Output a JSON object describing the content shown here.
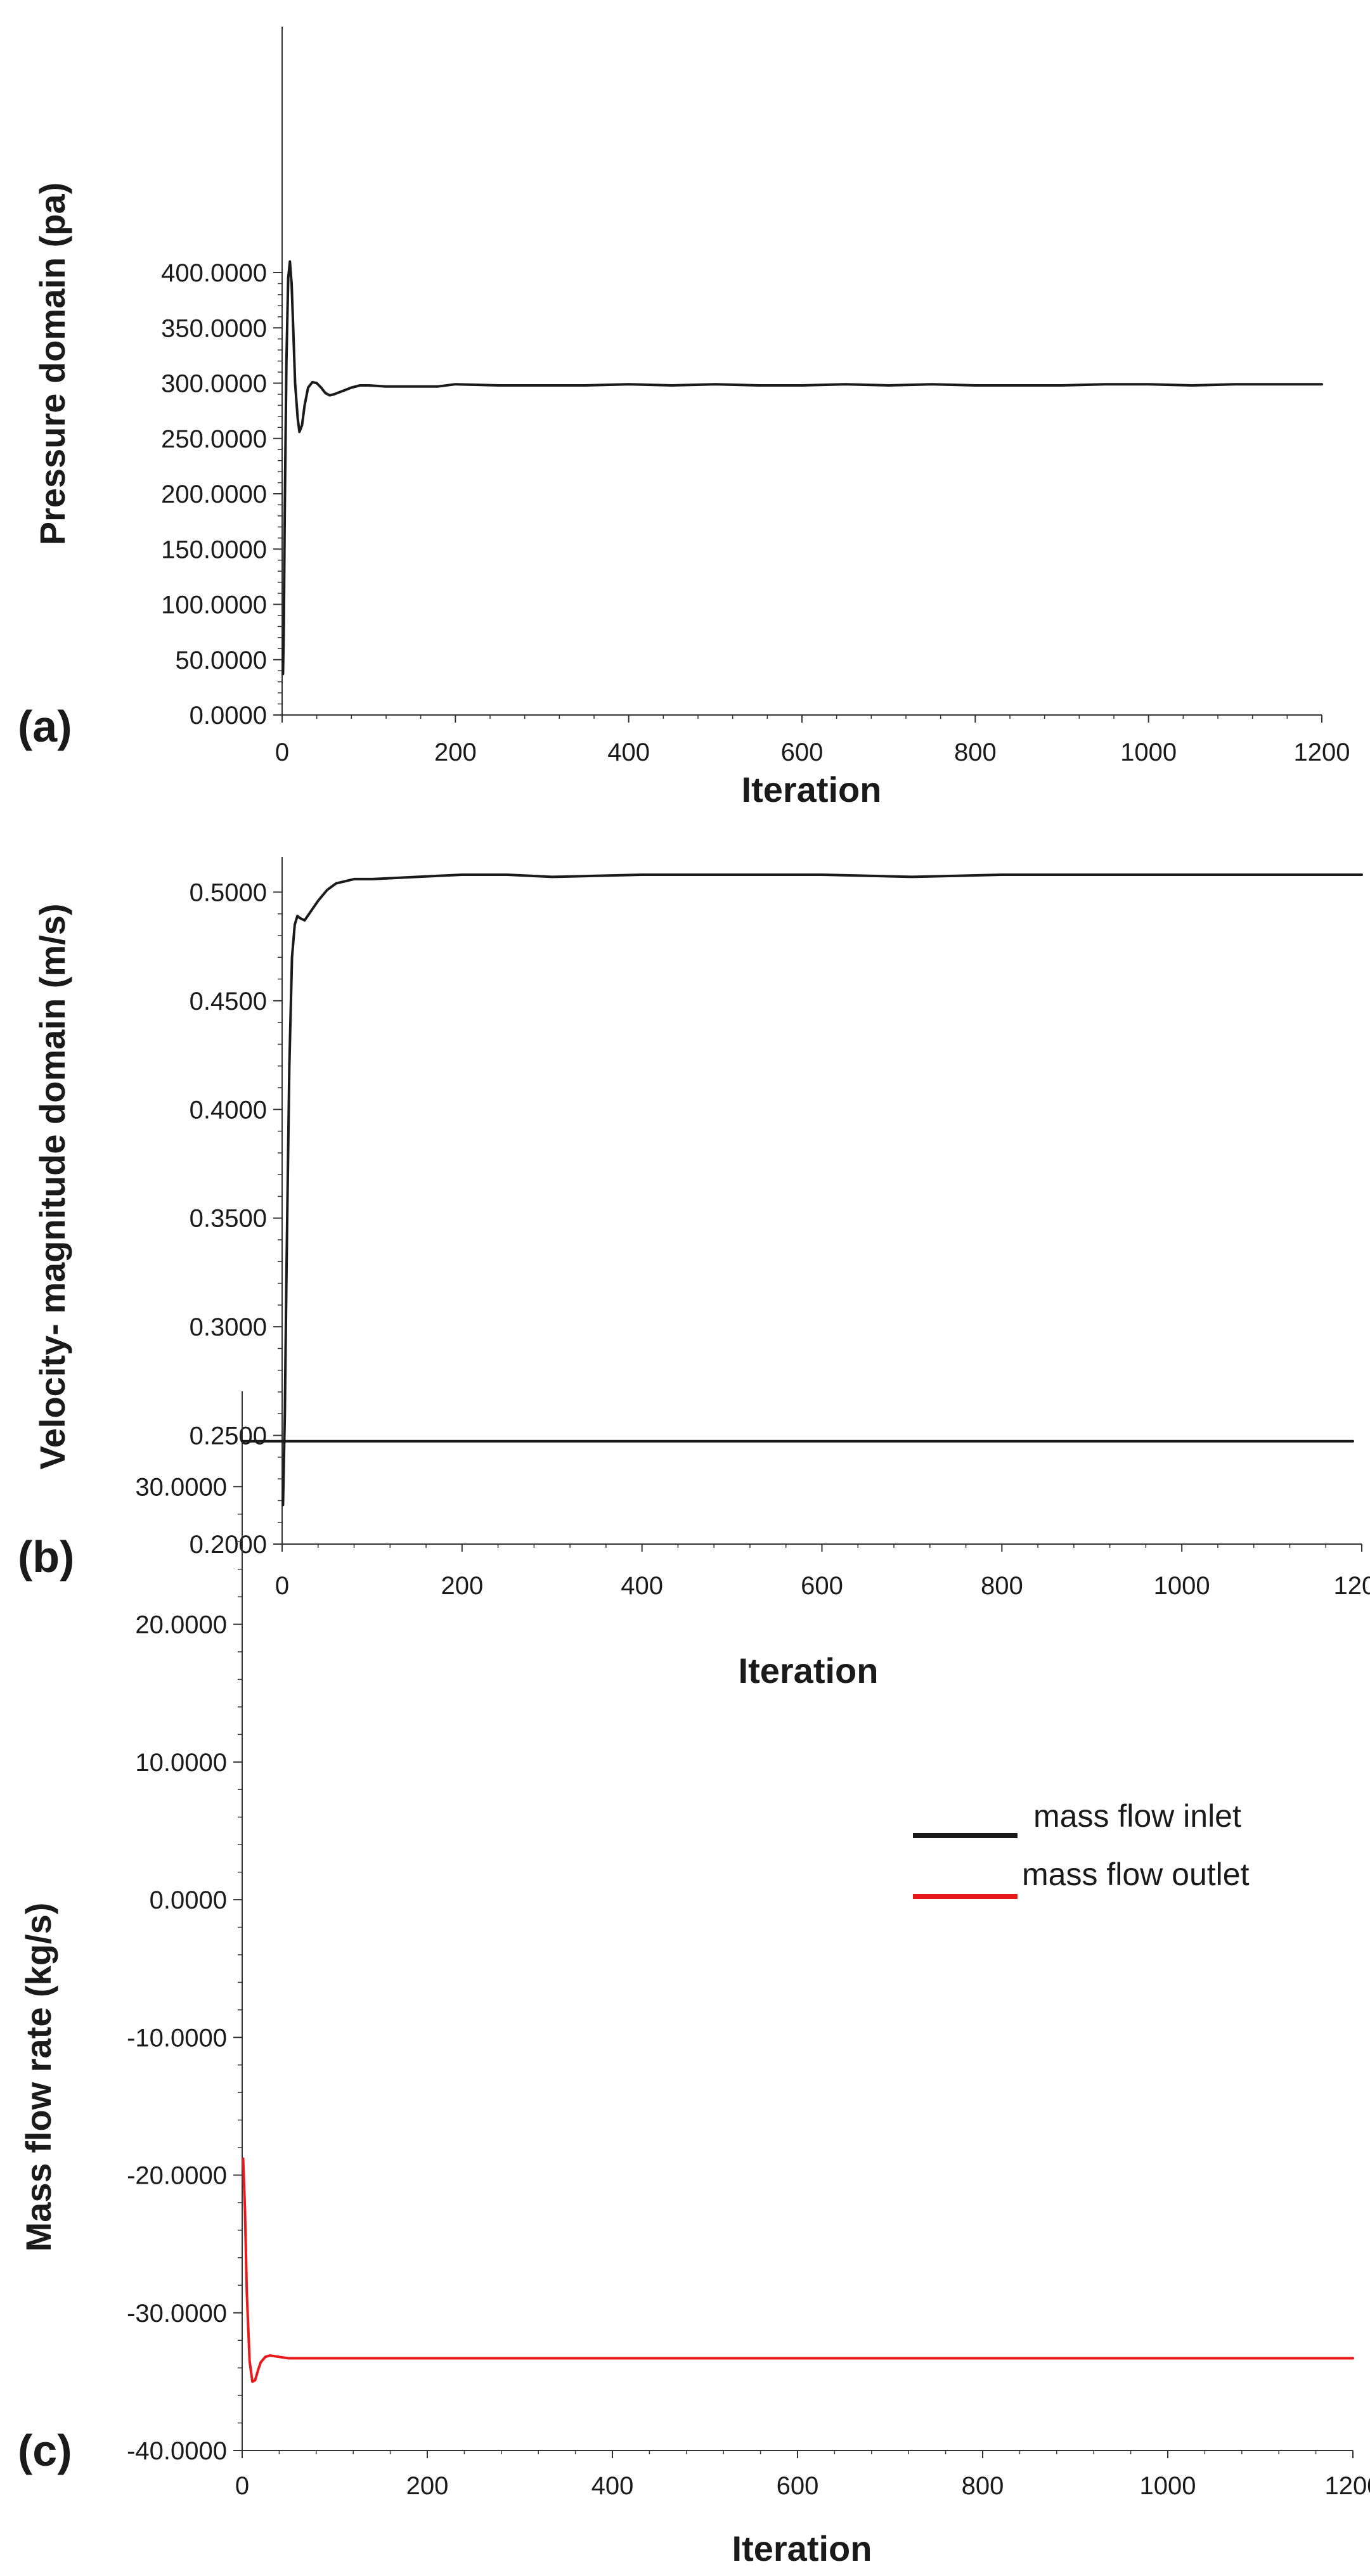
{
  "chart_data": [
    {
      "type": "line",
      "panel": "(a)",
      "xlabel": "Iteration",
      "ylabel": "Pressure domain (pa)",
      "xlim": [
        0,
        1200
      ],
      "ylim": [
        0,
        400
      ],
      "x_ticks": [
        "0",
        "200",
        "400",
        "600",
        "800",
        "1000",
        "1200"
      ],
      "y_ticks": [
        "0.0000",
        "50.0000",
        "100.0000",
        "150.0000",
        "200.0000",
        "250.0000",
        "300.0000",
        "350.0000",
        "400.0000"
      ],
      "series": [
        {
          "color": "#1a1a1a",
          "x": [
            1,
            2,
            3,
            5,
            7,
            9,
            11,
            13,
            15,
            18,
            20,
            23,
            26,
            30,
            35,
            40,
            45,
            50,
            55,
            60,
            70,
            80,
            90,
            100,
            120,
            150,
            180,
            200,
            250,
            300,
            350,
            400,
            450,
            500,
            550,
            600,
            650,
            700,
            750,
            800,
            850,
            900,
            950,
            1000,
            1050,
            1100,
            1150,
            1200
          ],
          "y": [
            37,
            80,
            180,
            320,
            395,
            410,
            390,
            345,
            300,
            268,
            256,
            262,
            280,
            296,
            301,
            300,
            296,
            291,
            289,
            290,
            293,
            296,
            298,
            298,
            297,
            297,
            297,
            299,
            298,
            298,
            298,
            299,
            298,
            299,
            298,
            298,
            299,
            298,
            299,
            298,
            298,
            298,
            299,
            299,
            298,
            299,
            299,
            299
          ]
        }
      ]
    },
    {
      "type": "line",
      "panel": "(b)",
      "xlabel": "Iteration",
      "ylabel": "Velocity- magnitude domain (m/s)",
      "xlim": [
        0,
        1200
      ],
      "ylim": [
        0.2,
        0.515
      ],
      "x_ticks": [
        "0",
        "200",
        "400",
        "600",
        "800",
        "1000",
        "1200"
      ],
      "y_ticks": [
        "0.2000",
        "0.2500",
        "0.3000",
        "0.3500",
        "0.4000",
        "0.4500",
        "0.5000"
      ],
      "series": [
        {
          "color": "#1a1a1a",
          "x": [
            1,
            3,
            5,
            8,
            11,
            14,
            17,
            20,
            25,
            30,
            35,
            40,
            50,
            60,
            70,
            80,
            100,
            150,
            200,
            250,
            300,
            400,
            500,
            600,
            700,
            800,
            900,
            1000,
            1100,
            1200
          ],
          "y": [
            0.218,
            0.26,
            0.33,
            0.42,
            0.47,
            0.485,
            0.489,
            0.488,
            0.487,
            0.49,
            0.493,
            0.496,
            0.501,
            0.504,
            0.505,
            0.506,
            0.506,
            0.507,
            0.508,
            0.508,
            0.507,
            0.508,
            0.508,
            0.508,
            0.507,
            0.508,
            0.508,
            0.508,
            0.508,
            0.508
          ]
        }
      ]
    },
    {
      "type": "line",
      "panel": "(c)",
      "xlabel": "Iteration",
      "ylabel": "Mass flow rate (kg/s)",
      "xlim": [
        0,
        1200
      ],
      "ylim": [
        -40,
        36
      ],
      "x_ticks": [
        "0",
        "200",
        "400",
        "600",
        "800",
        "1000",
        "1200"
      ],
      "y_ticks": [
        "-40.0000",
        "-30.0000",
        "-20.0000",
        "-10.0000",
        "0.0000",
        "10.0000",
        "20.0000",
        "30.0000"
      ],
      "legend_position": "right",
      "series": [
        {
          "name": "mass flow inlet",
          "color": "#1a1a1a",
          "x": [
            0,
            1200
          ],
          "y": [
            33.3,
            33.3
          ]
        },
        {
          "name": "mass flow outlet",
          "color": "#e8191a",
          "x": [
            1,
            3,
            5,
            8,
            11,
            14,
            17,
            20,
            25,
            30,
            40,
            50,
            60,
            80,
            100,
            200,
            400,
            600,
            800,
            1000,
            1200
          ],
          "y": [
            -18.8,
            -22.5,
            -28.5,
            -33.5,
            -35.0,
            -34.9,
            -34.2,
            -33.6,
            -33.2,
            -33.1,
            -33.2,
            -33.3,
            -33.3,
            -33.3,
            -33.3,
            -33.3,
            -33.3,
            -33.3,
            -33.3,
            -33.3,
            -33.3
          ]
        }
      ]
    }
  ]
}
